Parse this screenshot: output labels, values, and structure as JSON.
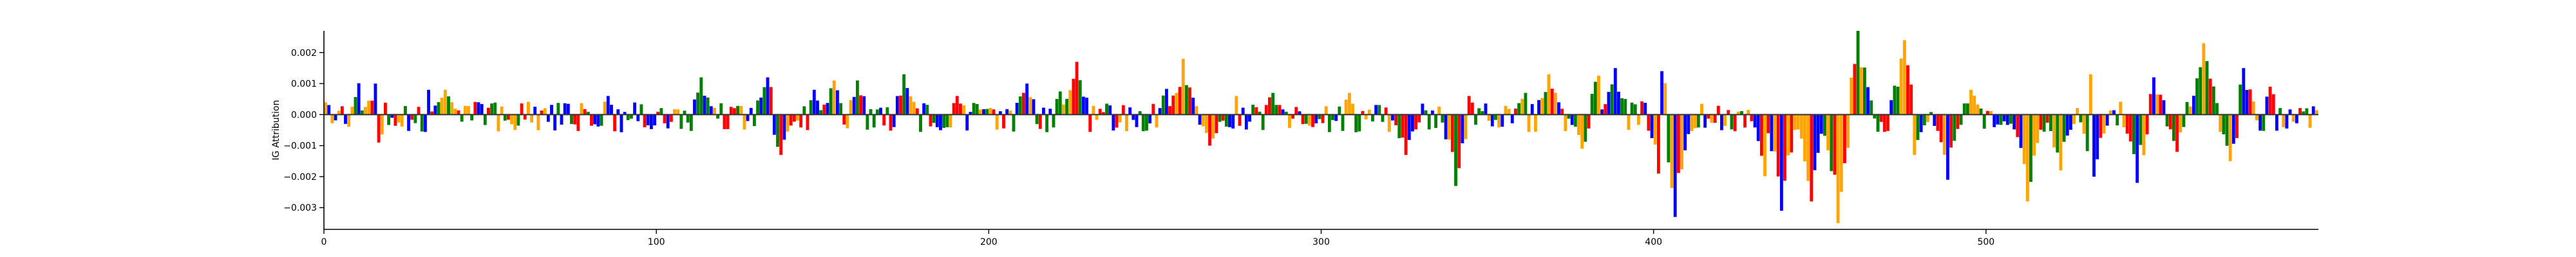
{
  "chart_data": {
    "type": "sequence-logo",
    "xlabel": "",
    "ylabel": "IG Attribution",
    "xlim": [
      0,
      600
    ],
    "ylim": [
      -0.0037,
      0.0027
    ],
    "x_ticks": [
      0,
      100,
      200,
      300,
      400,
      500
    ],
    "y_ticks": [
      0.002,
      0.001,
      0.0,
      -0.001,
      -0.002,
      -0.003
    ],
    "x_tick_labels": [
      "0",
      "100",
      "200",
      "300",
      "400",
      "500"
    ],
    "y_tick_labels": [
      "0.002",
      "0.001",
      "0.000",
      "−0.001",
      "−0.002",
      "−0.003"
    ],
    "base_colors": {
      "A": "#008000",
      "C": "#0000ff",
      "G": "#ffa500",
      "T": "#ff0000"
    },
    "positions": 600,
    "peaks": [
      {
        "pos": 12,
        "value": 0.0017,
        "base": "G"
      },
      {
        "pos": 15,
        "value": 0.001,
        "base": "C"
      },
      {
        "pos": 31,
        "value": 0.0008,
        "base": "C"
      },
      {
        "pos": 36,
        "value": 0.0008,
        "base": "G"
      },
      {
        "pos": 85,
        "value": 0.0006,
        "base": "C"
      },
      {
        "pos": 113,
        "value": 0.0012,
        "base": "A"
      },
      {
        "pos": 133,
        "value": 0.0012,
        "base": "C"
      },
      {
        "pos": 147,
        "value": 0.0008,
        "base": "C"
      },
      {
        "pos": 153,
        "value": 0.0011,
        "base": "G"
      },
      {
        "pos": 160,
        "value": 0.0011,
        "base": "A"
      },
      {
        "pos": 174,
        "value": 0.0013,
        "base": "A"
      },
      {
        "pos": 190,
        "value": 0.0006,
        "base": "T"
      },
      {
        "pos": 211,
        "value": 0.001,
        "base": "C"
      },
      {
        "pos": 223,
        "value": 0.0016,
        "base": "A"
      },
      {
        "pos": 226,
        "value": 0.0017,
        "base": "T"
      },
      {
        "pos": 255,
        "value": 0.0018,
        "base": "T"
      },
      {
        "pos": 258,
        "value": 0.0018,
        "base": "G"
      },
      {
        "pos": 274,
        "value": 0.0006,
        "base": "G"
      },
      {
        "pos": 285,
        "value": 0.0007,
        "base": "A"
      },
      {
        "pos": 308,
        "value": 0.0007,
        "base": "G"
      },
      {
        "pos": 344,
        "value": 0.0006,
        "base": "T"
      },
      {
        "pos": 361,
        "value": 0.0007,
        "base": "A"
      },
      {
        "pos": 368,
        "value": 0.0013,
        "base": "G"
      },
      {
        "pos": 384,
        "value": 0.0021,
        "base": "C"
      },
      {
        "pos": 388,
        "value": 0.0015,
        "base": "C"
      },
      {
        "pos": 402,
        "value": 0.0014,
        "base": "C"
      },
      {
        "pos": 457,
        "value": 0.0019,
        "base": "T"
      },
      {
        "pos": 461,
        "value": 0.0027,
        "base": "A"
      },
      {
        "pos": 475,
        "value": 0.0024,
        "base": "G"
      },
      {
        "pos": 495,
        "value": 0.0008,
        "base": "G"
      },
      {
        "pos": 515,
        "value": 0.0006,
        "base": "G"
      },
      {
        "pos": 531,
        "value": 0.0013,
        "base": "G"
      },
      {
        "pos": 545,
        "value": 0.0019,
        "base": "T"
      },
      {
        "pos": 550,
        "value": 0.0012,
        "base": "C"
      },
      {
        "pos": 565,
        "value": 0.0023,
        "base": "G"
      },
      {
        "pos": 577,
        "value": 0.0015,
        "base": "C"
      },
      {
        "pos": 585,
        "value": 0.0009,
        "base": "T"
      },
      {
        "pos": 16,
        "value": -0.0009,
        "base": "T"
      },
      {
        "pos": 57,
        "value": -0.0005,
        "base": "G"
      },
      {
        "pos": 137,
        "value": -0.0013,
        "base": "T"
      },
      {
        "pos": 266,
        "value": -0.001,
        "base": "T"
      },
      {
        "pos": 325,
        "value": -0.0013,
        "base": "T"
      },
      {
        "pos": 340,
        "value": -0.0023,
        "base": "A"
      },
      {
        "pos": 378,
        "value": -0.0011,
        "base": "G"
      },
      {
        "pos": 401,
        "value": -0.0019,
        "base": "T"
      },
      {
        "pos": 406,
        "value": -0.0033,
        "base": "C"
      },
      {
        "pos": 434,
        "value": -0.0026,
        "base": "T"
      },
      {
        "pos": 438,
        "value": -0.0031,
        "base": "C"
      },
      {
        "pos": 447,
        "value": -0.0028,
        "base": "T"
      },
      {
        "pos": 455,
        "value": -0.0035,
        "base": "G"
      },
      {
        "pos": 478,
        "value": -0.0013,
        "base": "G"
      },
      {
        "pos": 488,
        "value": -0.0021,
        "base": "C"
      },
      {
        "pos": 512,
        "value": -0.0028,
        "base": "G"
      },
      {
        "pos": 522,
        "value": -0.0018,
        "base": "G"
      },
      {
        "pos": 532,
        "value": -0.002,
        "base": "C"
      },
      {
        "pos": 545,
        "value": -0.0022,
        "base": "C"
      },
      {
        "pos": 557,
        "value": -0.0012,
        "base": "T"
      },
      {
        "pos": 573,
        "value": -0.0015,
        "base": "G"
      }
    ]
  }
}
